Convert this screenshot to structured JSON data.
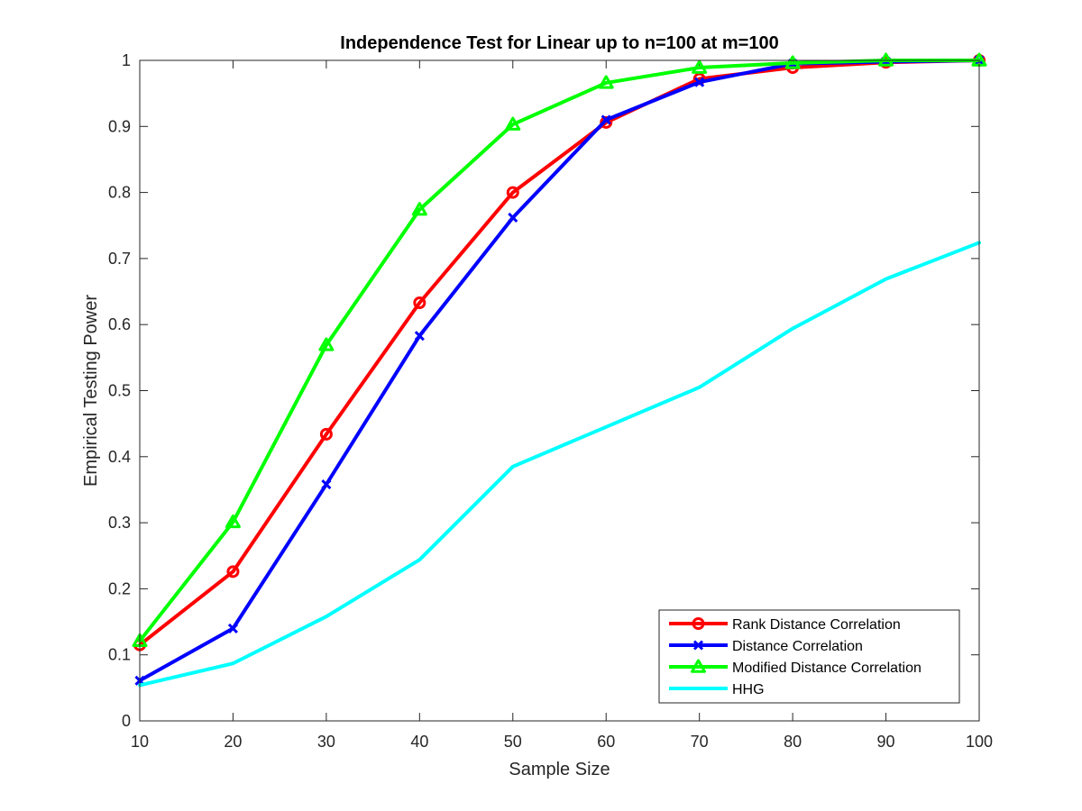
{
  "chart_data": {
    "type": "line",
    "title": "Independence Test for Linear up to n=100 at m=100",
    "xlabel": "Sample Size",
    "ylabel": "Empirical Testing Power",
    "xlim": [
      10,
      100
    ],
    "ylim": [
      0,
      1
    ],
    "x_ticks": [
      "10",
      "20",
      "30",
      "40",
      "50",
      "60",
      "70",
      "80",
      "90",
      "100"
    ],
    "y_ticks": [
      "0",
      "0.1",
      "0.2",
      "0.3",
      "0.4",
      "0.5",
      "0.6",
      "0.7",
      "0.8",
      "0.9",
      "1"
    ],
    "grid": false,
    "legend_position": "bottom-right",
    "x": [
      10,
      20,
      30,
      40,
      50,
      60,
      70,
      80,
      90,
      100
    ],
    "series": [
      {
        "name": "Rank Distance Correlation",
        "color": "#ff0000",
        "marker": "circle",
        "values": [
          0.115,
          0.226,
          0.434,
          0.633,
          0.8,
          0.906,
          0.972,
          0.989,
          0.997,
          1.0
        ]
      },
      {
        "name": "Distance Correlation",
        "color": "#0000ff",
        "marker": "x",
        "values": [
          0.061,
          0.14,
          0.358,
          0.583,
          0.762,
          0.91,
          0.967,
          0.995,
          0.998,
          1.0
        ]
      },
      {
        "name": "Modified Distance Correlation",
        "color": "#00ff00",
        "marker": "triangle",
        "values": [
          0.121,
          0.301,
          0.569,
          0.774,
          0.903,
          0.966,
          0.989,
          0.996,
          1.0,
          1.0
        ]
      },
      {
        "name": "HHG",
        "color": "#00ffff",
        "marker": "none",
        "values": [
          0.054,
          0.087,
          0.158,
          0.244,
          0.385,
          0.445,
          0.505,
          0.594,
          0.669,
          0.724
        ]
      }
    ]
  }
}
